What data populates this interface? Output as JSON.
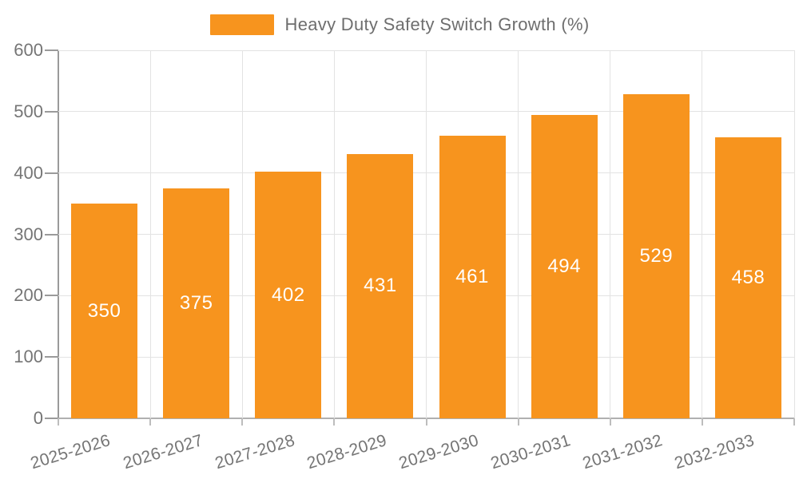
{
  "chart_data": {
    "type": "bar",
    "title": "Heavy Duty Safety Switch Growth (%)",
    "categories": [
      "2025-2026",
      "2026-2027",
      "2027-2028",
      "2028-2029",
      "2029-2030",
      "2030-2031",
      "2031-2032",
      "2032-2033"
    ],
    "values": [
      350,
      375,
      402,
      431,
      461,
      494,
      529,
      458
    ],
    "series": [
      {
        "name": "Heavy Duty Safety Switch Growth (%)",
        "values": [
          350,
          375,
          402,
          431,
          461,
          494,
          529,
          458
        ]
      }
    ],
    "xlabel": "",
    "ylabel": "",
    "ylim": [
      0,
      600
    ],
    "yticks": [
      0,
      100,
      200,
      300,
      400,
      500,
      600
    ],
    "grid": true,
    "legend_position": "top-center",
    "bar_label_position": "inside-center",
    "x_label_rotation_deg": -17,
    "colors": {
      "bar": "#F7941E",
      "bar_label": "#FFFFFF",
      "axis_line": "#9A9A9A",
      "x_axis_line": "#B0B0B0",
      "tick_mark": "#BDBDBD",
      "grid_line": "#E3E3E3",
      "tick_text": "#757575",
      "legend_text": "#6E6E6E",
      "background": "#FFFFFF"
    }
  }
}
